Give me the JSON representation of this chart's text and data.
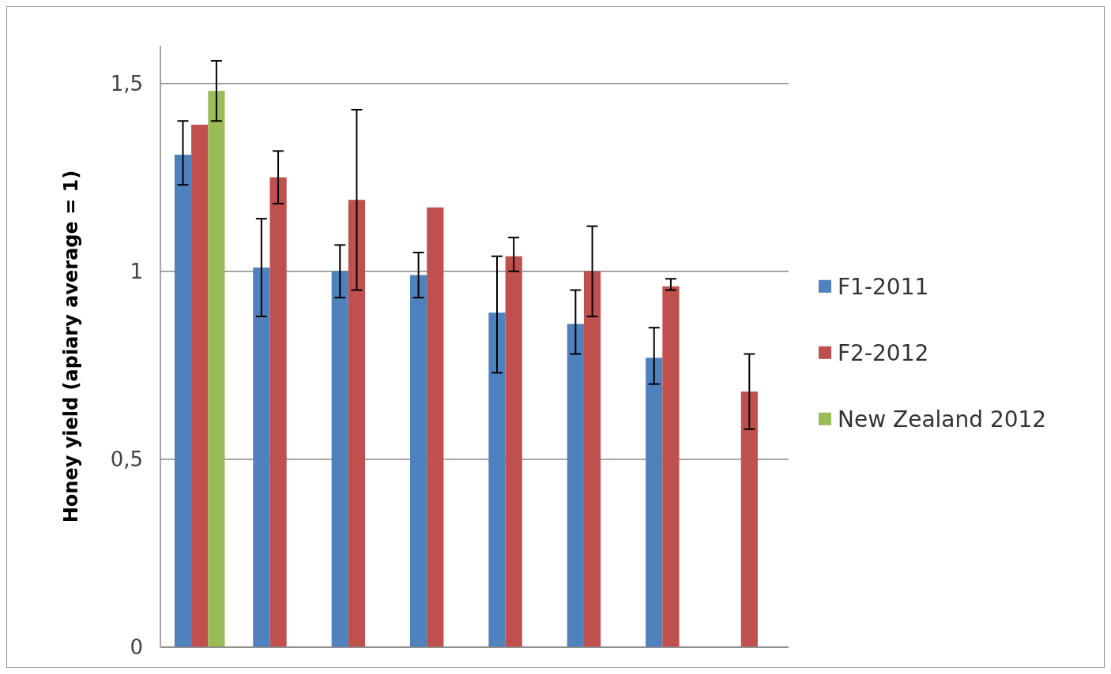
{
  "chart_data": {
    "type": "bar",
    "ylabel": "Honey yield (apiary average = 1)",
    "categories": [
      null,
      null,
      null,
      null,
      null,
      null,
      null,
      null
    ],
    "series": [
      {
        "name": "F1-2011",
        "color": "#4f81bd",
        "values": [
          1.31,
          1.01,
          1.0,
          0.99,
          0.89,
          0.86,
          0.77,
          null
        ],
        "errors": [
          [
            1.23,
            1.4
          ],
          [
            0.88,
            1.14
          ],
          [
            0.93,
            1.07
          ],
          [
            0.93,
            1.05
          ],
          [
            0.73,
            1.04
          ],
          [
            0.78,
            0.95
          ],
          [
            0.7,
            0.85
          ],
          null
        ]
      },
      {
        "name": "F2-2012",
        "color": "#c0504d",
        "values": [
          1.39,
          1.25,
          1.19,
          1.17,
          1.04,
          1.0,
          0.96,
          0.68
        ],
        "errors": [
          null,
          [
            1.18,
            1.32
          ],
          [
            0.95,
            1.43
          ],
          null,
          [
            1.0,
            1.09
          ],
          [
            0.88,
            1.12
          ],
          [
            0.95,
            0.98
          ],
          [
            0.58,
            0.78
          ]
        ]
      },
      {
        "name": "New Zealand 2012",
        "color": "#9bbb59",
        "values": [
          1.48,
          null,
          null,
          null,
          null,
          null,
          null,
          null
        ],
        "errors": [
          [
            1.4,
            1.56
          ],
          null,
          null,
          null,
          null,
          null,
          null,
          null
        ]
      }
    ],
    "ylim": [
      0,
      1.6
    ],
    "yticks": [
      0,
      {
        "value": 0.5,
        "label": "0,5"
      },
      1,
      {
        "value": 1.5,
        "label": "1,5"
      }
    ],
    "grid": "y",
    "legend": "right"
  }
}
